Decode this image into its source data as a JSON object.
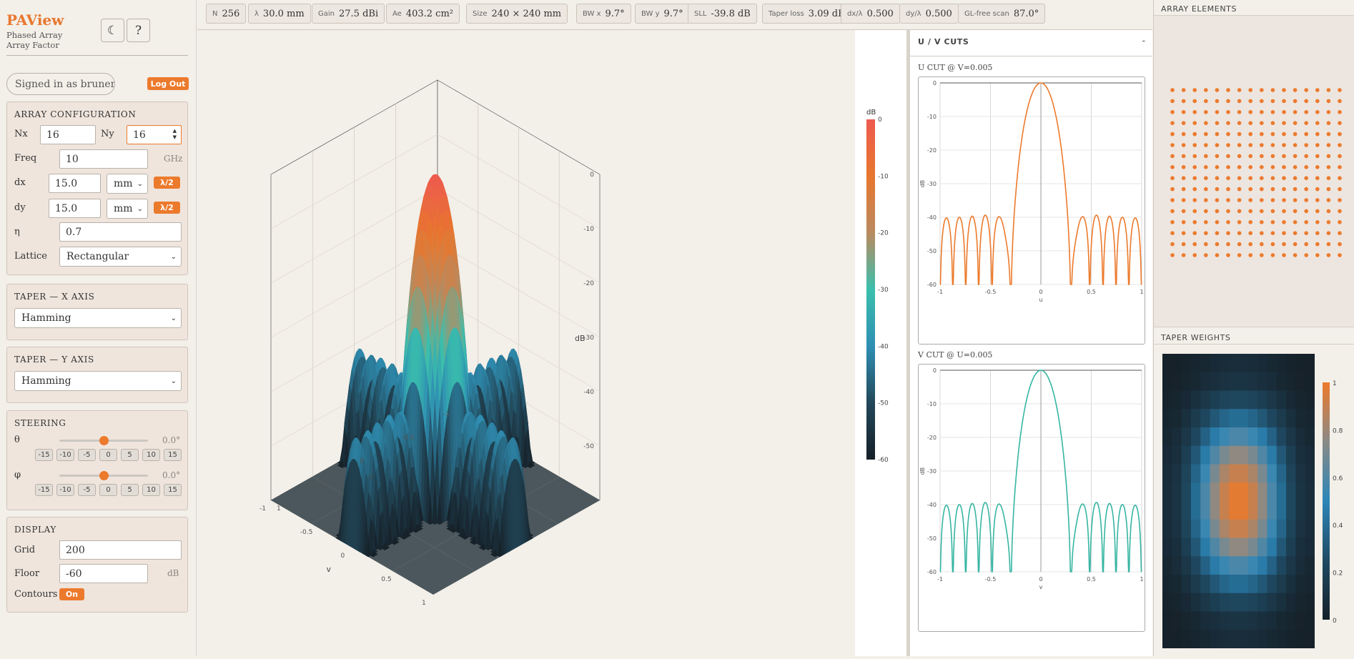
{
  "app": {
    "title": "PAView",
    "subtitle": "Phased Array Array Factor",
    "theme_icon": "moon-icon",
    "help_label": "?"
  },
  "user": {
    "signed_in": "Signed in as brunerm",
    "logout": "Log Out"
  },
  "array_config": {
    "heading": "ARRAY CONFIGURATION",
    "nx_label": "Nx",
    "nx": "16",
    "ny_label": "Ny",
    "ny": "16",
    "freq_label": "Freq",
    "freq": "10",
    "freq_unit": "GHz",
    "dx_label": "dx",
    "dx": "15.0",
    "dx_unit": "mm",
    "dy_label": "dy",
    "dy": "15.0",
    "dy_unit": "mm",
    "lambda_half": "λ/2",
    "eta_label": "η",
    "eta": "0.7",
    "lattice_label": "Lattice",
    "lattice": "Rectangular"
  },
  "taper_x": {
    "heading": "TAPER — X AXIS",
    "value": "Hamming"
  },
  "taper_y": {
    "heading": "TAPER — Y AXIS",
    "value": "Hamming"
  },
  "steering": {
    "heading": "STEERING",
    "theta_label": "θ",
    "theta": "0.0°",
    "theta_frac": 0.5,
    "phi_label": "φ",
    "phi": "0.0°",
    "phi_frac": 0.5,
    "presets": [
      "-15",
      "-10",
      "-5",
      "0",
      "5",
      "10",
      "15"
    ]
  },
  "display": {
    "heading": "DISPLAY",
    "grid_label": "Grid",
    "grid": "200",
    "floor_label": "Floor",
    "floor": "-60",
    "floor_unit": "dB",
    "contours_label": "Contours",
    "contours": "On"
  },
  "stats": [
    {
      "k": "N",
      "v": "256"
    },
    {
      "k": "λ",
      "v": "30.0 mm"
    },
    {
      "k": "Gain",
      "v": "27.5 dBi"
    },
    {
      "k": "Ae",
      "v": "403.2 cm²"
    },
    {
      "k": "Size",
      "v": "240 × 240 mm"
    },
    {
      "k": "BW x",
      "v": "9.7°"
    },
    {
      "k": "BW y",
      "v": "9.7°"
    },
    {
      "k": "SLL",
      "v": "-39.8 dB"
    },
    {
      "k": "Taper loss",
      "v": "3.09 dB"
    },
    {
      "k": "dx/λ",
      "v": "0.500"
    },
    {
      "k": "dy/λ",
      "v": "0.500"
    },
    {
      "k": "GL-free scan",
      "v": "87.0°"
    }
  ],
  "plot3d": {
    "z_title": "dB",
    "z_ticks": [
      "0",
      "-10",
      "-20",
      "-30",
      "-40",
      "-50",
      "-60"
    ],
    "u_title": "u",
    "v_title": "v",
    "u_ticks": [
      "-1",
      "-0.5",
      "0",
      "0.5",
      "1"
    ],
    "v_ticks": [
      "-1",
      "-0.5",
      "0",
      "0.5",
      "1"
    ]
  },
  "colorbar": {
    "title": "dB",
    "ticks": [
      "0",
      "-10",
      "-20",
      "-30",
      "-40",
      "-50",
      "-60"
    ],
    "colors": [
      "#ee5a4f",
      "#e7772e",
      "#b98a5f",
      "#3bbfad",
      "#2f8fb3",
      "#22485a",
      "#162028"
    ]
  },
  "cuts": {
    "heading": "U / V CUTS",
    "collapse": "-",
    "u_title": "U CUT @ V=0.005",
    "v_title": "V CUT @ U=0.005",
    "ylabel": "dB",
    "u_xlabel": "u",
    "v_xlabel": "v",
    "y_ticks": [
      "0",
      "-10",
      "-20",
      "-30",
      "-40",
      "-50",
      "-60"
    ],
    "x_ticks": [
      "-1",
      "-0.5",
      "0",
      "0.5",
      "1"
    ],
    "u_color": "#ec7a2c",
    "v_color": "#36b5a2"
  },
  "chart_data": [
    {
      "type": "line",
      "title": "U CUT @ V=0.005",
      "xlabel": "u",
      "ylabel": "dB",
      "xlim": [
        -1,
        1
      ],
      "ylim": [
        -60,
        0
      ],
      "grid": true,
      "series": [
        {
          "x": [
            -1,
            -0.98,
            -0.96,
            -0.94,
            -0.92,
            -0.9,
            -0.88,
            -0.86,
            -0.84,
            -0.82,
            -0.8,
            -0.78,
            -0.76,
            -0.74,
            -0.72,
            -0.7,
            -0.68,
            -0.66,
            -0.64,
            -0.62,
            -0.6,
            -0.58,
            -0.56,
            -0.54,
            -0.52,
            -0.5,
            -0.48,
            -0.46,
            -0.44,
            -0.42,
            -0.4,
            -0.38,
            -0.36,
            -0.34,
            -0.32,
            -0.3,
            -0.28,
            -0.26,
            -0.24,
            -0.22,
            -0.2,
            -0.18,
            -0.16,
            -0.14,
            -0.12,
            -0.1,
            -0.08,
            -0.06,
            -0.04,
            -0.02,
            0,
            0.02,
            0.04,
            0.06,
            0.08,
            0.1,
            0.12,
            0.14,
            0.16,
            0.18,
            0.2,
            0.22,
            0.24,
            0.26,
            0.28,
            0.3,
            0.32,
            0.34,
            0.36,
            0.38,
            0.4,
            0.42,
            0.44,
            0.46,
            0.48,
            0.5,
            0.52,
            0.54,
            0.56,
            0.58,
            0.6,
            0.62,
            0.64,
            0.66,
            0.68,
            0.7,
            0.72,
            0.74,
            0.76,
            0.78,
            0.8,
            0.82,
            0.84,
            0.86,
            0.88,
            0.9,
            0.92,
            0.94,
            0.96,
            0.98,
            1
          ],
          "y": [
            -42,
            -50,
            -60,
            -44,
            -41,
            -49,
            -60,
            -43,
            -40,
            -48,
            -60,
            -44,
            -40,
            -47,
            -60,
            -43,
            -40,
            -46,
            -60,
            -44,
            -40,
            -45,
            -60,
            -46,
            -40,
            -42,
            -55,
            -60,
            -47,
            -42,
            -41,
            -45,
            -58,
            -58,
            -45,
            -38,
            -30,
            -23,
            -17,
            -12,
            -8,
            -5,
            -2.8,
            -1.3,
            -0.4,
            -0.1,
            0,
            -0.1,
            -0.4,
            -1.3,
            -2.8,
            -5,
            -8,
            -12,
            -17,
            -23,
            -30,
            -38,
            -45,
            -58,
            -58,
            -45,
            -41,
            -42,
            -47,
            -60,
            -55,
            -42,
            -40,
            -46,
            -60,
            -45,
            -40,
            -44,
            -60,
            -46,
            -40,
            -43,
            -60,
            -47,
            -40,
            -44,
            -60,
            -48,
            -40,
            -43,
            -60,
            -49,
            -41,
            -44,
            -60,
            -50,
            -42,
            -44,
            -60,
            -49,
            -41,
            -44,
            -60,
            -50,
            -42
          ]
        }
      ]
    },
    {
      "type": "line",
      "title": "V CUT @ U=0.005",
      "xlabel": "v",
      "ylabel": "dB",
      "xlim": [
        -1,
        1
      ],
      "ylim": [
        -60,
        0
      ],
      "grid": true,
      "series": [
        {
          "x": "same as U cut",
          "y": "same as U cut"
        }
      ]
    }
  ],
  "array_elements": {
    "heading": "ARRAY ELEMENTS",
    "nx": 16,
    "ny": 16,
    "color": "#ec7a2c"
  },
  "taper_weights": {
    "heading": "TAPER WEIGHTS",
    "ticks": [
      "1",
      "0.8",
      "0.6",
      "0.4",
      "0.2",
      "0"
    ]
  }
}
